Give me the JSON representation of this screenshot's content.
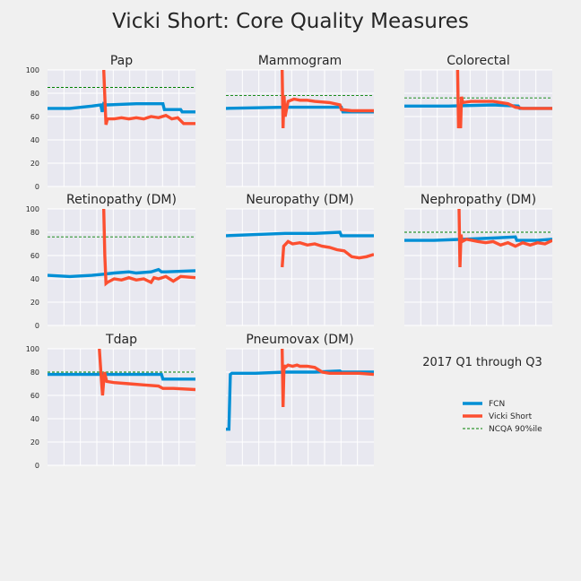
{
  "title": "Vicki Short: Core Quality Measures",
  "subtitle": "2017 Q1 through Q3",
  "colors": {
    "fcn": "#008fd5",
    "provider": "#fc4f30",
    "ncqa": "#008000",
    "panel_bg": "#e8e8f0",
    "grid": "#ffffff"
  },
  "legend": [
    {
      "key": "fcn",
      "label": "FCN",
      "style": "thick"
    },
    {
      "key": "provider",
      "label": "Vicki Short",
      "style": "thick"
    },
    {
      "key": "ncqa",
      "label": "NCQA 90%ile",
      "style": "dashed"
    }
  ],
  "chart_data": [
    {
      "type": "line",
      "title": "Pap",
      "xlim": [
        0,
        100
      ],
      "ylim": [
        0,
        100
      ],
      "yticks": [
        0,
        20,
        40,
        60,
        80,
        100
      ],
      "ncqa_90th": 85,
      "series": [
        {
          "name": "FCN",
          "x": [
            0,
            15,
            30,
            36,
            37,
            38,
            40,
            60,
            78,
            79,
            90,
            91,
            100
          ],
          "y": [
            67,
            67,
            69,
            70,
            64,
            71,
            70,
            71,
            71,
            66,
            66,
            64,
            64
          ]
        },
        {
          "name": "Vicki Short",
          "x": [
            38,
            38.8,
            39.5,
            40.5,
            45,
            50,
            55,
            60,
            65,
            70,
            75,
            80,
            84,
            88,
            92,
            100
          ],
          "y": [
            100,
            75,
            53,
            58,
            58,
            59,
            58,
            59,
            58,
            60,
            59,
            61,
            58,
            59,
            54,
            54
          ]
        }
      ]
    },
    {
      "type": "line",
      "title": "Mammogram",
      "xlim": [
        0,
        100
      ],
      "ylim": [
        0,
        100
      ],
      "yticks": [
        0,
        20,
        40,
        60,
        80,
        100
      ],
      "ncqa_90th": 78,
      "series": [
        {
          "name": "FCN",
          "x": [
            0,
            40,
            60,
            78,
            79,
            100
          ],
          "y": [
            67,
            68,
            68,
            68,
            64,
            64
          ]
        },
        {
          "name": "Vicki Short",
          "x": [
            38,
            38.6,
            39.3,
            40,
            42,
            46,
            50,
            55,
            60,
            70,
            77,
            78,
            85,
            100
          ],
          "y": [
            100,
            50,
            78,
            60,
            73,
            75,
            74,
            74,
            73,
            72,
            70,
            66,
            65,
            65
          ]
        }
      ]
    },
    {
      "type": "line",
      "title": "Colorectal",
      "xlim": [
        0,
        100
      ],
      "ylim": [
        0,
        100
      ],
      "yticks": [
        0,
        20,
        40,
        60,
        80,
        100
      ],
      "ncqa_90th": 76,
      "series": [
        {
          "name": "FCN",
          "x": [
            0,
            30,
            60,
            77,
            78,
            100
          ],
          "y": [
            69,
            69,
            70,
            69,
            67,
            67
          ]
        },
        {
          "name": "Vicki Short",
          "x": [
            36,
            36.6,
            37.3,
            38,
            38.6,
            39.5,
            45,
            55,
            60,
            70,
            75,
            80,
            100
          ],
          "y": [
            100,
            50,
            70,
            50,
            77,
            72,
            73,
            73,
            73,
            71,
            68,
            67,
            67
          ]
        }
      ]
    },
    {
      "type": "line",
      "title": "Retinopathy (DM)",
      "xlim": [
        0,
        100
      ],
      "ylim": [
        0,
        100
      ],
      "yticks": [
        0,
        20,
        40,
        60,
        80,
        100
      ],
      "ncqa_90th": 76,
      "series": [
        {
          "name": "FCN",
          "x": [
            0,
            15,
            30,
            38,
            45,
            55,
            60,
            70,
            75,
            77,
            80,
            100
          ],
          "y": [
            43,
            42,
            43,
            44,
            45,
            46,
            45,
            46,
            48,
            46,
            46,
            47
          ]
        },
        {
          "name": "Vicki Short",
          "x": [
            38,
            38.7,
            39.5,
            40.5,
            45,
            50,
            55,
            60,
            65,
            70,
            72,
            75,
            80,
            85,
            90,
            100
          ],
          "y": [
            100,
            60,
            36,
            37,
            40,
            39,
            41,
            39,
            40,
            37,
            41,
            40,
            42,
            38,
            42,
            41
          ]
        }
      ]
    },
    {
      "type": "line",
      "title": "Neuropathy (DM)",
      "xlim": [
        0,
        100
      ],
      "ylim": [
        0,
        100
      ],
      "yticks": [
        0,
        20,
        40,
        60,
        80,
        100
      ],
      "ncqa_90th": null,
      "series": [
        {
          "name": "FCN",
          "x": [
            0,
            20,
            40,
            60,
            77,
            78,
            100
          ],
          "y": [
            77,
            78,
            79,
            79,
            80,
            77,
            77
          ]
        },
        {
          "name": "Vicki Short",
          "x": [
            38,
            39,
            42,
            45,
            50,
            55,
            60,
            65,
            70,
            75,
            80,
            85,
            90,
            95,
            100
          ],
          "y": [
            50,
            68,
            72,
            70,
            71,
            69,
            70,
            68,
            67,
            65,
            64,
            59,
            58,
            59,
            61
          ]
        }
      ]
    },
    {
      "type": "line",
      "title": "Nephropathy (DM)",
      "xlim": [
        0,
        100
      ],
      "ylim": [
        0,
        100
      ],
      "yticks": [
        0,
        20,
        40,
        60,
        80,
        100
      ],
      "ncqa_90th": 80,
      "series": [
        {
          "name": "FCN",
          "x": [
            0,
            20,
            40,
            60,
            75,
            76,
            90,
            100
          ],
          "y": [
            73,
            73,
            74,
            75,
            76,
            73,
            73,
            74
          ]
        },
        {
          "name": "Vicki Short",
          "x": [
            37,
            37.6,
            38.3,
            39,
            42,
            50,
            55,
            60,
            65,
            70,
            75,
            80,
            85,
            90,
            95,
            100
          ],
          "y": [
            100,
            50,
            78,
            72,
            74,
            72,
            71,
            72,
            69,
            71,
            68,
            71,
            69,
            71,
            70,
            73
          ]
        }
      ]
    },
    {
      "type": "line",
      "title": "Tdap",
      "xlim": [
        0,
        100
      ],
      "ylim": [
        0,
        100
      ],
      "yticks": [
        0,
        20,
        40,
        60,
        80,
        100
      ],
      "ncqa_90th": 80,
      "series": [
        {
          "name": "FCN",
          "x": [
            0,
            40,
            60,
            77,
            78,
            100
          ],
          "y": [
            78,
            78,
            78,
            78,
            74,
            74
          ]
        },
        {
          "name": "Vicki Short",
          "x": [
            35,
            36.5,
            37.2,
            37.8,
            38.5,
            40,
            45,
            55,
            65,
            75,
            78,
            85,
            100
          ],
          "y": [
            100,
            72,
            60,
            70,
            80,
            72,
            71,
            70,
            69,
            68,
            66,
            66,
            65
          ]
        }
      ]
    },
    {
      "type": "line",
      "title": "Pneumovax (DM)",
      "xlim": [
        0,
        100
      ],
      "ylim": [
        0,
        100
      ],
      "yticks": [
        0,
        20,
        40,
        60,
        80,
        100
      ],
      "ncqa_90th": null,
      "series": [
        {
          "name": "FCN",
          "x": [
            0,
            2,
            3,
            4,
            20,
            40,
            60,
            77,
            78,
            100
          ],
          "y": [
            31,
            31,
            78,
            79,
            79,
            80,
            80,
            81,
            80,
            80
          ]
        },
        {
          "name": "Vicki Short",
          "x": [
            38,
            38.6,
            39.3,
            40,
            42,
            45,
            48,
            50,
            55,
            60,
            65,
            70,
            75,
            80,
            90,
            100
          ],
          "y": [
            100,
            50,
            86,
            84,
            86,
            85,
            86,
            85,
            85,
            84,
            80,
            79,
            79,
            79,
            79,
            78
          ]
        }
      ]
    }
  ]
}
